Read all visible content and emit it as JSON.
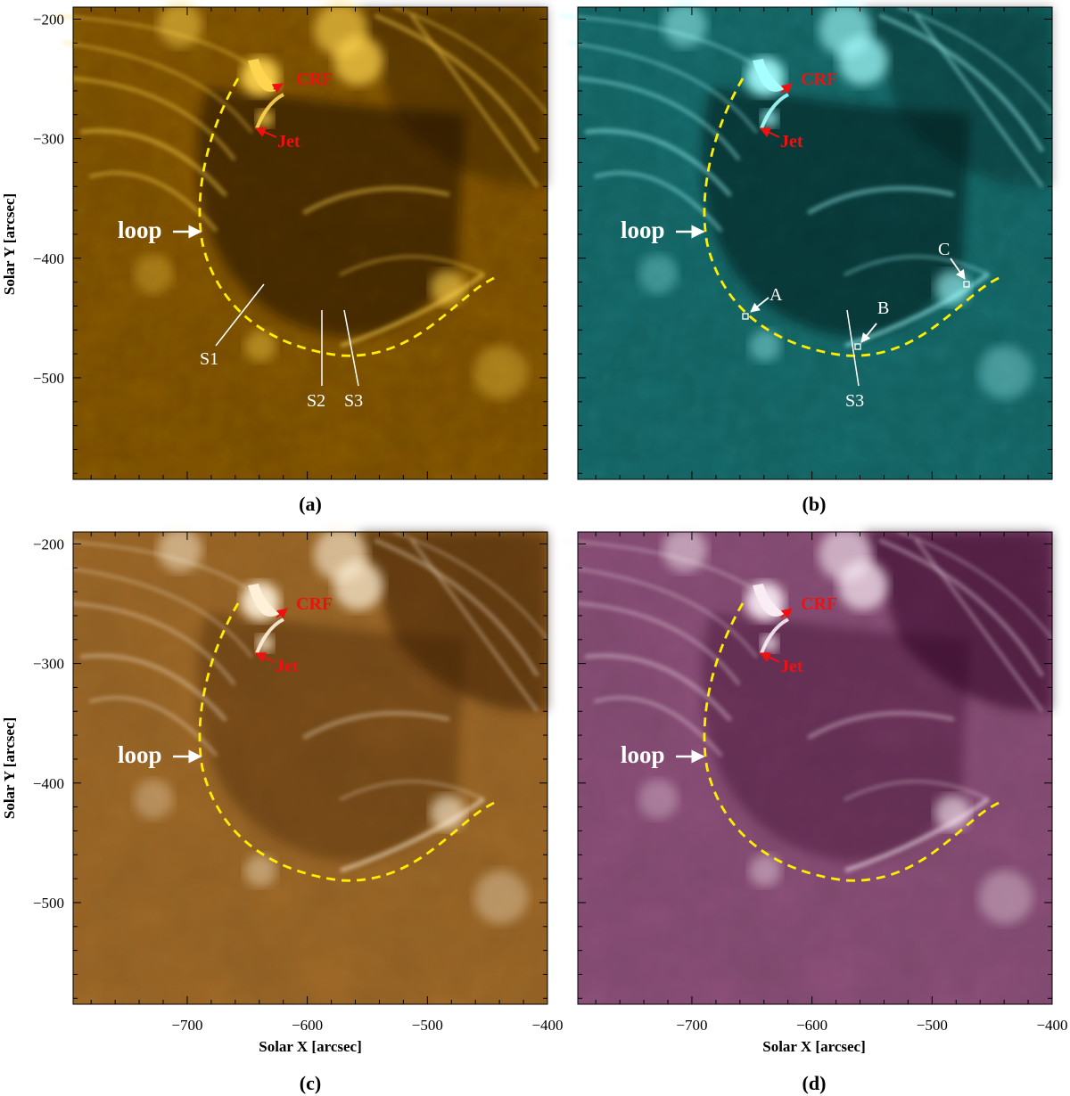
{
  "axes": {
    "ylabel": "Solar Y [arcsec]",
    "xlabel": "Solar X [arcsec]",
    "x_ticks": [
      "−700",
      "−600",
      "−500",
      "−400"
    ],
    "y_ticks": [
      "−200",
      "−300",
      "−400",
      "−500"
    ],
    "x_range": [
      -795,
      -400
    ],
    "y_range": [
      -585,
      -190
    ]
  },
  "panels": [
    {
      "id": "a",
      "label": "(a)",
      "theme": "gold",
      "palette": [
        "#1c0f00",
        "#5e3a00",
        "#b57800",
        "#ffd650"
      ]
    },
    {
      "id": "b",
      "label": "(b)",
      "theme": "teal",
      "palette": [
        "#021616",
        "#0b4a4a",
        "#259c9c",
        "#a8ffff"
      ]
    },
    {
      "id": "c",
      "label": "(c)",
      "theme": "bronze",
      "palette": [
        "#3a1e02",
        "#7a4a14",
        "#c79650",
        "#fff2da"
      ]
    },
    {
      "id": "d",
      "label": "(d)",
      "theme": "plum",
      "palette": [
        "#2e0620",
        "#6a3157",
        "#b387a6",
        "#fbeef6"
      ]
    }
  ],
  "annotations": {
    "crf": "CRF",
    "jet": "Jet",
    "loop": "loop",
    "s1": "S1",
    "s2": "S2",
    "s3": "S3",
    "point_a": "A",
    "point_b": "B",
    "point_c": "C"
  },
  "colors": {
    "loop_trace": "#ffee00",
    "red_labels": "#ee1111",
    "white_labels": "#ffffff"
  }
}
